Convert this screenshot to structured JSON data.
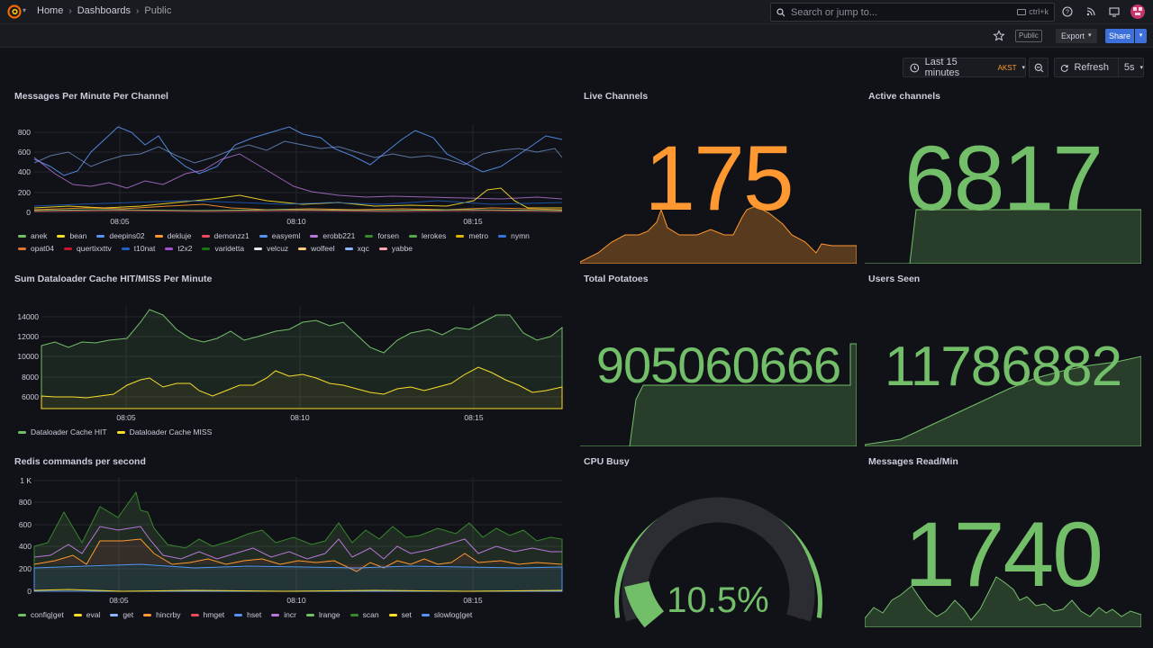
{
  "nav": {
    "breadcrumbs": [
      "Home",
      "Dashboards",
      "Public"
    ],
    "search_placeholder": "Search or jump to...",
    "search_shortcut": "ctrl+k"
  },
  "toolbar": {
    "public_tag": "Public",
    "export_label": "Export",
    "share_label": "Share"
  },
  "time_controls": {
    "range_label": "Last 15 minutes",
    "timezone": "AKST",
    "refresh_label": "Refresh",
    "refresh_interval": "5s"
  },
  "colors": {
    "green": "#73bf69",
    "orange": "#ff9830",
    "red": "#f2495c",
    "blue": "#5794f2",
    "yellow": "#fade2a",
    "purple": "#b877d9"
  },
  "panels": {
    "messages": {
      "title": "Messages Per Minute Per Channel",
      "legend": [
        {
          "name": "anek",
          "color": "#73bf69"
        },
        {
          "name": "bean",
          "color": "#fade2a"
        },
        {
          "name": "deepins02",
          "color": "#5794f2"
        },
        {
          "name": "dekluje",
          "color": "#ff9830"
        },
        {
          "name": "demonzz1",
          "color": "#f2495c"
        },
        {
          "name": "easyeml",
          "color": "#5794f2"
        },
        {
          "name": "erobb221",
          "color": "#b877d9"
        },
        {
          "name": "forsen",
          "color": "#37872d"
        },
        {
          "name": "lerokes",
          "color": "#56a64b"
        },
        {
          "name": "metro",
          "color": "#e0b400"
        },
        {
          "name": "nymn",
          "color": "#3274d9"
        },
        {
          "name": "opat04",
          "color": "#e0752d"
        },
        {
          "name": "quertixxttv",
          "color": "#c4162a"
        },
        {
          "name": "t10nat",
          "color": "#1f60c4"
        },
        {
          "name": "t2x2",
          "color": "#a352cc"
        },
        {
          "name": "varidetta",
          "color": "#19730e"
        },
        {
          "name": "velcuz",
          "color": "#e5e5e5"
        },
        {
          "name": "wolfeel",
          "color": "#ffcb7d"
        },
        {
          "name": "xqc",
          "color": "#8ab8ff"
        },
        {
          "name": "yabbe",
          "color": "#ffa6b0"
        }
      ],
      "y_ticks": [
        "800",
        "600",
        "400",
        "200",
        "0"
      ],
      "x_ticks": [
        "08:05",
        "08:10",
        "08:15"
      ]
    },
    "cache": {
      "title": "Sum Dataloader Cache HIT/MISS Per Minute",
      "legend": [
        {
          "name": "Dataloader Cache HIT",
          "color": "#73bf69"
        },
        {
          "name": "Dataloader Cache MISS",
          "color": "#fade2a"
        }
      ],
      "y_ticks": [
        "14000",
        "12000",
        "10000",
        "8000",
        "6000"
      ],
      "x_ticks": [
        "08:05",
        "08:10",
        "08:15"
      ]
    },
    "redis": {
      "title": "Redis commands per second",
      "legend": [
        {
          "name": "config|get",
          "color": "#73bf69"
        },
        {
          "name": "eval",
          "color": "#fade2a"
        },
        {
          "name": "get",
          "color": "#8ab8ff"
        },
        {
          "name": "hincrby",
          "color": "#ff9830"
        },
        {
          "name": "hmget",
          "color": "#f2495c"
        },
        {
          "name": "hset",
          "color": "#5794f2"
        },
        {
          "name": "incr",
          "color": "#b877d9"
        },
        {
          "name": "lrange",
          "color": "#73bf69"
        },
        {
          "name": "scan",
          "color": "#37872d"
        },
        {
          "name": "set",
          "color": "#fade2a"
        },
        {
          "name": "slowlog|get",
          "color": "#5794f2"
        }
      ],
      "y_ticks": [
        "1 K",
        "800",
        "600",
        "400",
        "200",
        "0"
      ],
      "x_ticks": [
        "08:05",
        "08:10",
        "08:15"
      ]
    },
    "live_channels": {
      "title": "Live Channels",
      "value": "175",
      "color": "#ff9830"
    },
    "active_channels": {
      "title": "Active channels",
      "value": "6817",
      "color": "#73bf69"
    },
    "total_potatoes": {
      "title": "Total Potatoes",
      "value": "905060666",
      "color": "#73bf69"
    },
    "users_seen": {
      "title": "Users Seen",
      "value": "11786882",
      "color": "#73bf69"
    },
    "cpu_busy": {
      "title": "CPU Busy",
      "value": "10.5%",
      "percent": 10.5,
      "color": "#73bf69"
    },
    "messages_read": {
      "title": "Messages Read/Min",
      "value": "1740",
      "color": "#73bf69"
    }
  }
}
